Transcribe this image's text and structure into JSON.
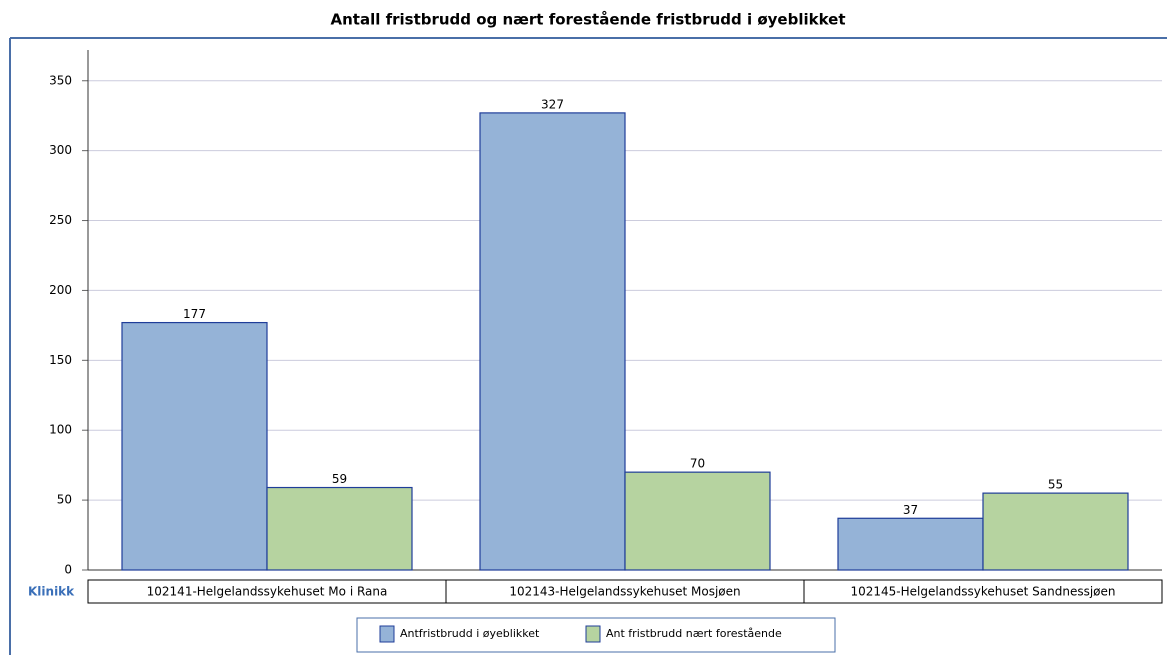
{
  "chart_data": {
    "type": "bar",
    "title": "Antall fristbrudd og nært forestående fristbrudd i øyeblikket",
    "x_label": "Klinikk",
    "categories": [
      "102141-Helgelandssykehuset Mo i Rana",
      "102143-Helgelandssykehuset Mosjøen",
      "102145-Helgelandssykehuset Sandnessjøen"
    ],
    "series": [
      {
        "name": "Antfristbrudd i øyeblikket",
        "color": "#95b3d7",
        "values": [
          177,
          327,
          37
        ]
      },
      {
        "name": "Ant fristbrudd nært forestående",
        "color": "#b6d3a0",
        "values": [
          59,
          70,
          55
        ]
      }
    ],
    "ylim": [
      0,
      372
    ],
    "yticks": [
      0,
      50,
      100,
      150,
      200,
      250,
      300,
      350
    ],
    "grid": true
  }
}
